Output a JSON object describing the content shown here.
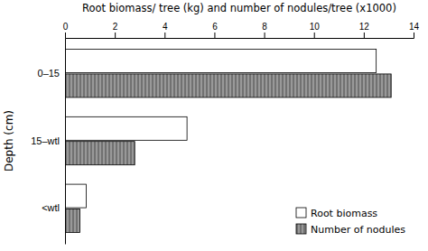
{
  "chart_data": {
    "type": "bar",
    "orientation": "horizontal",
    "title": "Root biomass/ tree (kg) and number of nodules/tree (x1000)",
    "ylabel": "Depth (cm)",
    "categories": [
      "0–15",
      "15–wtl",
      "<wtl"
    ],
    "series": [
      {
        "name": "Root biomass",
        "color": "#ffffff",
        "values": [
          12.5,
          4.9,
          0.85
        ]
      },
      {
        "name": "Number of nodules",
        "color": "#999999",
        "values": [
          13.1,
          2.8,
          0.6
        ]
      }
    ],
    "xlim": [
      0,
      14
    ],
    "xticks": [
      0,
      2,
      4,
      6,
      8,
      10,
      12,
      14
    ],
    "grid": false,
    "legend": "lower right"
  }
}
